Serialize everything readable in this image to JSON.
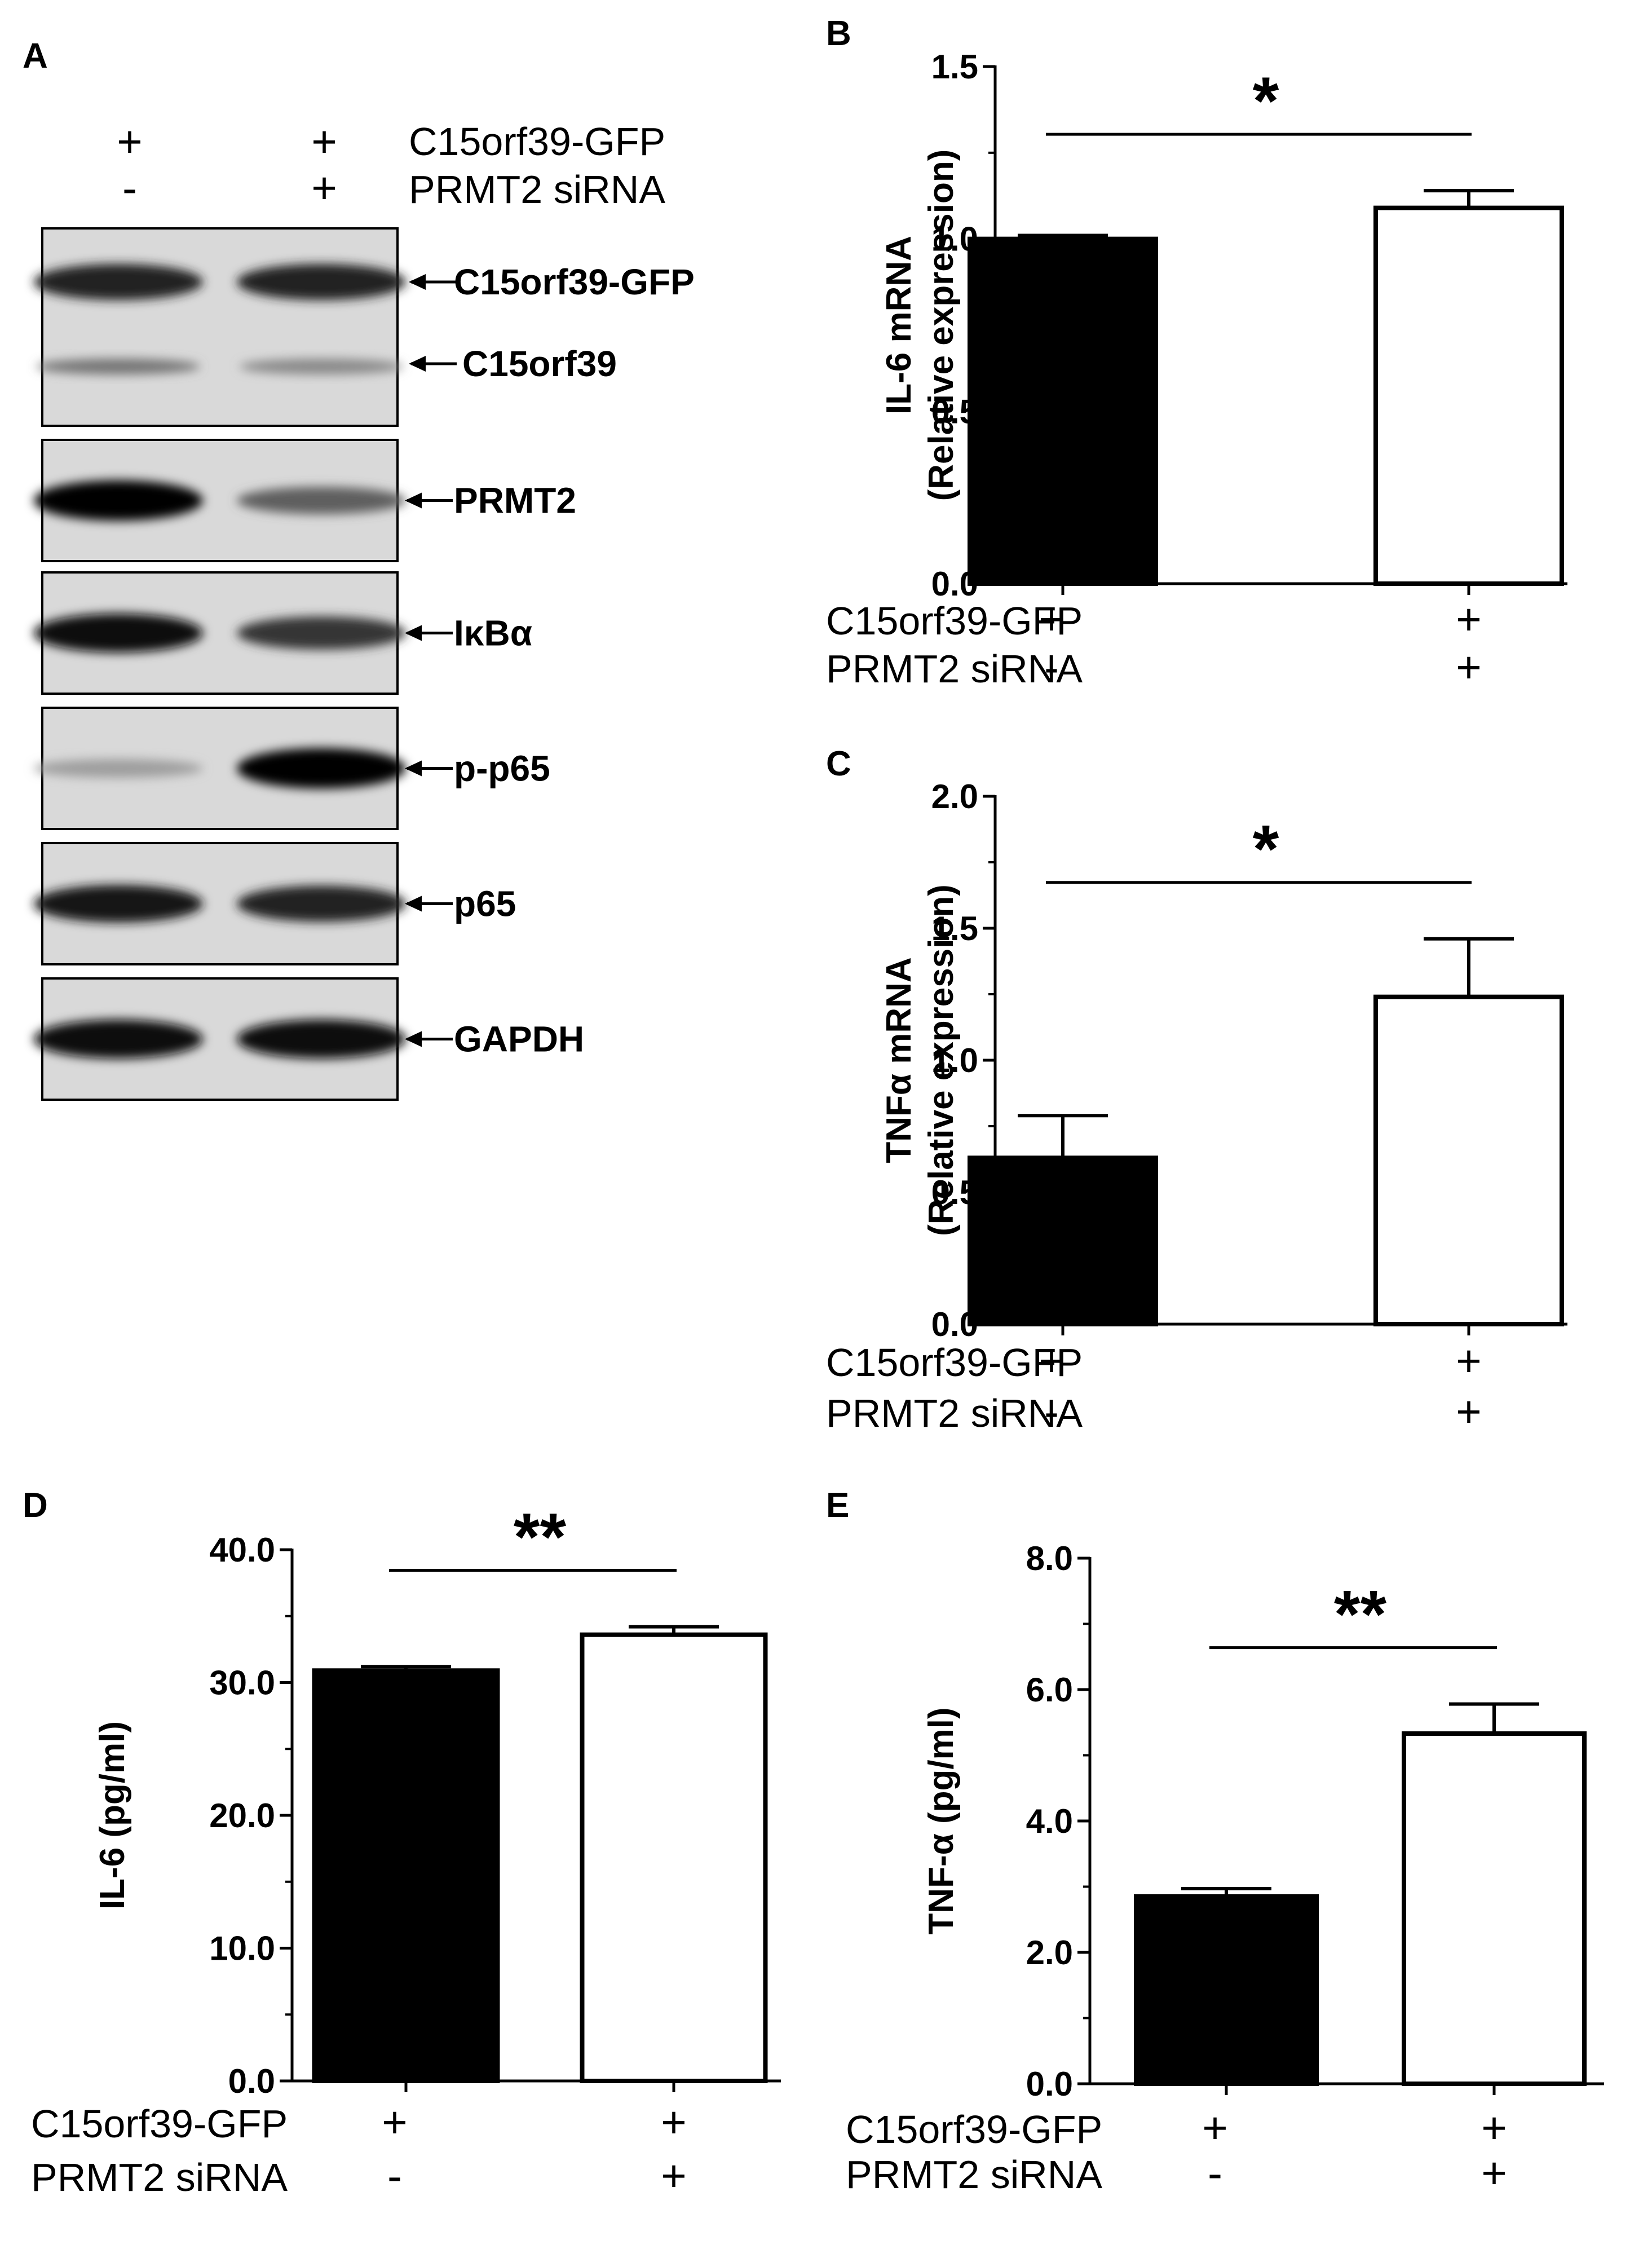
{
  "panel_a": {
    "letter": "A",
    "conditions": [
      {
        "label": "C15orf39-GFP",
        "signs": [
          "+",
          "+"
        ]
      },
      {
        "label": "PRMT2 siRNA",
        "signs": [
          "-",
          "+"
        ]
      }
    ],
    "blots": [
      {
        "labels": [
          "C15orf39-GFP",
          "C15orf39"
        ],
        "intensity": [
          0.85,
          0.85
        ],
        "secondary": [
          0.45,
          0.35
        ]
      },
      {
        "labels": [
          "PRMT2"
        ],
        "intensity": [
          1.0,
          0.55
        ]
      },
      {
        "labels": [
          "IκBα"
        ],
        "intensity": [
          0.95,
          0.75
        ]
      },
      {
        "labels": [
          "p-p65"
        ],
        "intensity": [
          0.25,
          1.0
        ]
      },
      {
        "labels": [
          "p65"
        ],
        "intensity": [
          0.9,
          0.85
        ]
      },
      {
        "labels": [
          "GAPDH"
        ],
        "intensity": [
          0.95,
          0.95
        ]
      }
    ]
  },
  "chart_data": [
    {
      "letter": "B",
      "type": "bar",
      "ylabel": [
        "IL-6 mRNA",
        "(Relative expression)"
      ],
      "ylim": [
        0,
        1.5
      ],
      "yticks": [
        "0.0",
        "0.5",
        "1.0",
        "1.5"
      ],
      "values": [
        1.0,
        1.09
      ],
      "errors": [
        0.01,
        0.05
      ],
      "fill_colors": [
        "#000000",
        "#ffffff"
      ],
      "significance": "*",
      "conditions": [
        {
          "label": "C15orf39-GFP",
          "signs": [
            "+",
            "+"
          ]
        },
        {
          "label": "PRMT2 siRNA",
          "signs": [
            "-",
            "+"
          ]
        }
      ]
    },
    {
      "letter": "C",
      "type": "bar",
      "ylabel": [
        "TNFα mRNA",
        "(Relative expression)"
      ],
      "ylim": [
        0,
        2.0
      ],
      "yticks": [
        "0.0",
        "0.5",
        "1.0",
        "1.5",
        "2.0"
      ],
      "values": [
        0.63,
        1.24
      ],
      "errors": [
        0.16,
        0.22
      ],
      "fill_colors": [
        "#000000",
        "#ffffff"
      ],
      "significance": "*",
      "conditions": [
        {
          "label": "C15orf39-GFP",
          "signs": [
            "+",
            "+"
          ]
        },
        {
          "label": "PRMT2 siRNA",
          "signs": [
            "-",
            "+"
          ]
        }
      ]
    },
    {
      "letter": "D",
      "type": "bar",
      "ylabel": [
        "IL-6 (pg/ml)"
      ],
      "ylim": [
        0,
        40
      ],
      "yticks": [
        "0.0",
        "10.0",
        "20.0",
        "30.0",
        "40.0"
      ],
      "values": [
        30.9,
        33.6
      ],
      "errors": [
        0.3,
        0.6
      ],
      "fill_colors": [
        "#000000",
        "#ffffff"
      ],
      "significance": "**",
      "conditions": [
        {
          "label": "C15orf39-GFP",
          "signs": [
            "+",
            "+"
          ]
        },
        {
          "label": "PRMT2 siRNA",
          "signs": [
            "-",
            "+"
          ]
        }
      ]
    },
    {
      "letter": "E",
      "type": "bar",
      "ylabel": [
        "TNF-α (pg/ml)"
      ],
      "ylim": [
        0,
        8.0
      ],
      "yticks": [
        "0.0",
        "2.0",
        "4.0",
        "6.0",
        "8.0"
      ],
      "values": [
        2.85,
        5.33
      ],
      "errors": [
        0.12,
        0.45
      ],
      "fill_colors": [
        "#000000",
        "#ffffff"
      ],
      "significance": "**",
      "conditions": [
        {
          "label": "C15orf39-GFP",
          "signs": [
            "+",
            "+"
          ]
        },
        {
          "label": "PRMT2 siRNA",
          "signs": [
            "-",
            "+"
          ]
        }
      ]
    }
  ]
}
